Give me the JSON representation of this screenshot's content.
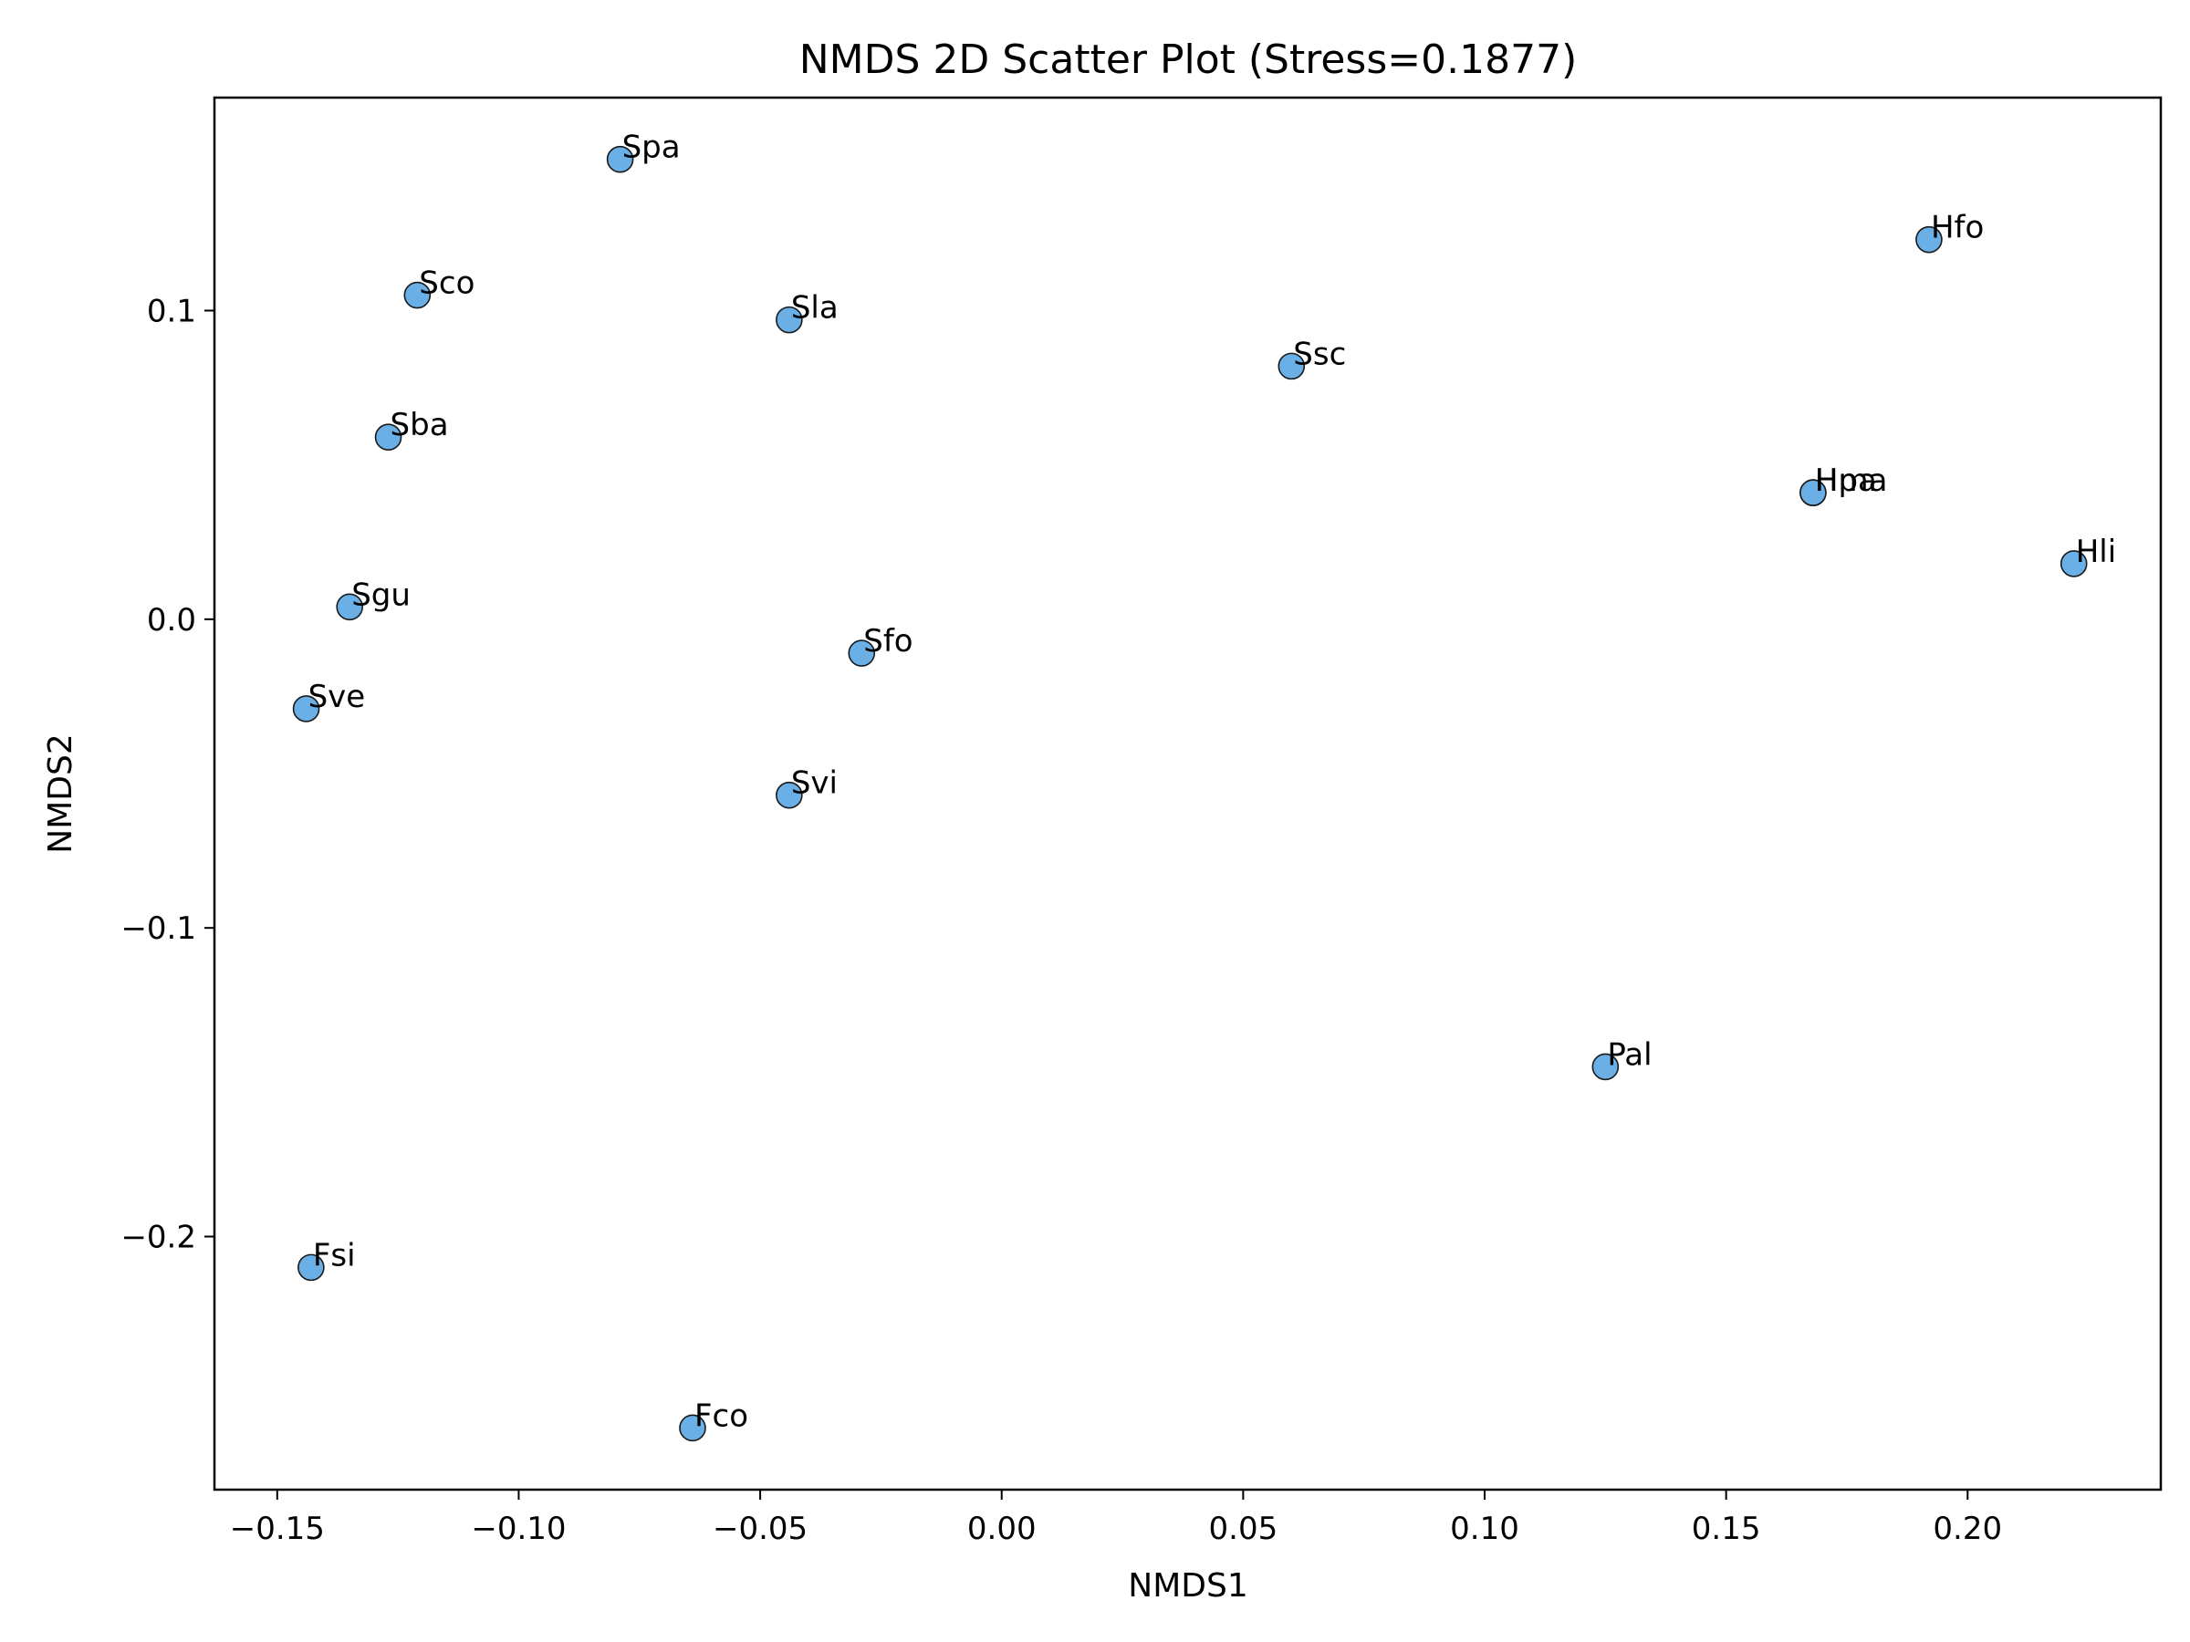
{
  "chart_data": {
    "type": "scatter",
    "title": "NMDS 2D Scatter Plot (Stress=0.1877)",
    "xlabel": "NMDS1",
    "ylabel": "NMDS2",
    "xlim": [
      -0.163,
      0.24
    ],
    "ylim": [
      -0.282,
      0.169
    ],
    "xticks": [
      -0.15,
      -0.1,
      -0.05,
      0.0,
      0.05,
      0.1,
      0.15,
      0.2
    ],
    "xtick_labels": [
      "−0.15",
      "−0.10",
      "−0.05",
      "0.00",
      "0.05",
      "0.10",
      "0.15",
      "0.20"
    ],
    "yticks": [
      -0.2,
      -0.1,
      0.0,
      0.1
    ],
    "ytick_labels": [
      "−0.2",
      "−0.1",
      "0.0",
      "0.1"
    ],
    "grid": false,
    "marker_color": "#6aafe6",
    "marker_edge_color": "#1a1a1a",
    "points": [
      {
        "label": "Spa",
        "x": -0.079,
        "y": 0.149
      },
      {
        "label": "Sco",
        "x": -0.121,
        "y": 0.105
      },
      {
        "label": "Sla",
        "x": -0.044,
        "y": 0.097
      },
      {
        "label": "Ssc",
        "x": 0.06,
        "y": 0.082
      },
      {
        "label": "Hfo",
        "x": 0.192,
        "y": 0.123
      },
      {
        "label": "Sba",
        "x": -0.127,
        "y": 0.059
      },
      {
        "label": "Hpa",
        "x": 0.168,
        "y": 0.041
      },
      {
        "label": "Hma",
        "x": 0.168,
        "y": 0.041
      },
      {
        "label": "Hli",
        "x": 0.222,
        "y": 0.018
      },
      {
        "label": "Sgu",
        "x": -0.135,
        "y": 0.004
      },
      {
        "label": "Sfo",
        "x": -0.029,
        "y": -0.011
      },
      {
        "label": "Sve",
        "x": -0.144,
        "y": -0.029
      },
      {
        "label": "Svi",
        "x": -0.044,
        "y": -0.057
      },
      {
        "label": "Pal",
        "x": 0.125,
        "y": -0.145
      },
      {
        "label": "Fsi",
        "x": -0.143,
        "y": -0.21
      },
      {
        "label": "Fco",
        "x": -0.064,
        "y": -0.262
      }
    ]
  }
}
